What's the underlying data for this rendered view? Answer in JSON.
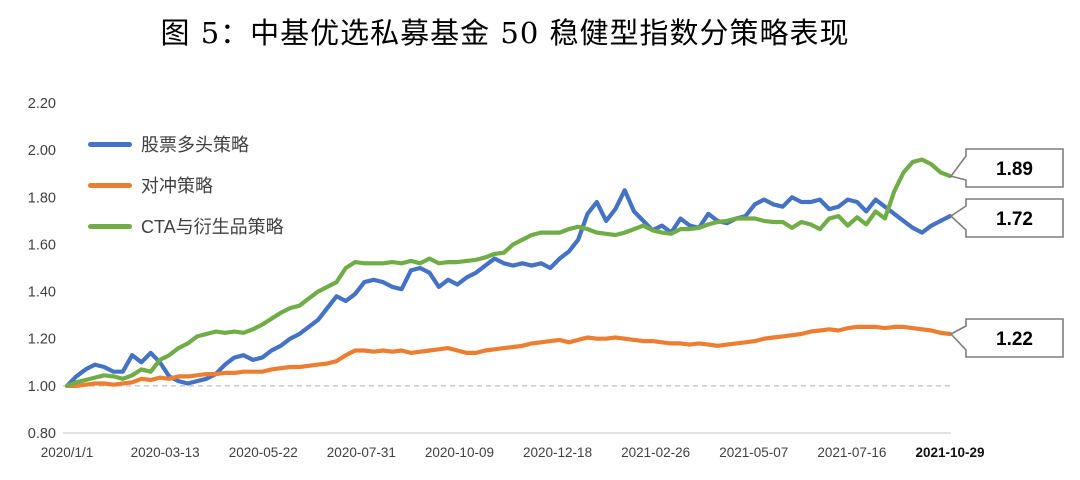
{
  "title": "图 5：中基优选私募基金 50 稳健型指数分策略表现",
  "chart_data": {
    "type": "line",
    "title": "图 5：中基优选私募基金 50 稳健型指数分策略表现",
    "ylim": [
      0.8,
      2.2
    ],
    "y_ticks": [
      "2.20",
      "2.00",
      "1.80",
      "1.60",
      "1.40",
      "1.20",
      "1.00",
      "0.80"
    ],
    "x_labels": [
      "2020/1/1",
      "2020-03-13",
      "2020-05-22",
      "2020-07-31",
      "2020-10-09",
      "2020-12-18",
      "2021-02-26",
      "2021-05-07",
      "2021-07-16",
      "2021-10-29"
    ],
    "baseline_dashed_at": 1.0,
    "grid": "only dashed line at 1.00 and solid bottom axis at 0.80",
    "legend_position": "inside-top-left",
    "series": [
      {
        "name": "股票多头策略",
        "color": "#4472C4",
        "end_label": "1.72",
        "values": [
          1.0,
          1.04,
          1.07,
          1.09,
          1.08,
          1.06,
          1.06,
          1.13,
          1.1,
          1.14,
          1.1,
          1.04,
          1.02,
          1.01,
          1.02,
          1.03,
          1.05,
          1.09,
          1.12,
          1.13,
          1.11,
          1.12,
          1.15,
          1.17,
          1.2,
          1.22,
          1.25,
          1.28,
          1.33,
          1.38,
          1.36,
          1.39,
          1.44,
          1.45,
          1.44,
          1.42,
          1.41,
          1.49,
          1.5,
          1.48,
          1.42,
          1.45,
          1.43,
          1.46,
          1.48,
          1.51,
          1.54,
          1.52,
          1.51,
          1.52,
          1.51,
          1.52,
          1.5,
          1.54,
          1.57,
          1.62,
          1.73,
          1.78,
          1.7,
          1.75,
          1.83,
          1.74,
          1.7,
          1.66,
          1.68,
          1.65,
          1.71,
          1.68,
          1.67,
          1.73,
          1.7,
          1.69,
          1.71,
          1.72,
          1.77,
          1.79,
          1.77,
          1.76,
          1.8,
          1.78,
          1.78,
          1.79,
          1.75,
          1.76,
          1.79,
          1.78,
          1.74,
          1.79,
          1.76,
          1.73,
          1.7,
          1.67,
          1.65,
          1.68,
          1.7,
          1.72
        ]
      },
      {
        "name": "对冲策略",
        "color": "#ED7D31",
        "end_label": "1.22",
        "values": [
          1.0,
          1.0,
          1.005,
          1.01,
          1.01,
          1.005,
          1.01,
          1.015,
          1.03,
          1.025,
          1.035,
          1.03,
          1.04,
          1.04,
          1.045,
          1.05,
          1.05,
          1.055,
          1.055,
          1.06,
          1.06,
          1.06,
          1.07,
          1.075,
          1.08,
          1.08,
          1.085,
          1.09,
          1.095,
          1.105,
          1.13,
          1.15,
          1.15,
          1.145,
          1.15,
          1.145,
          1.15,
          1.14,
          1.145,
          1.15,
          1.155,
          1.16,
          1.15,
          1.14,
          1.14,
          1.15,
          1.155,
          1.16,
          1.165,
          1.17,
          1.18,
          1.185,
          1.19,
          1.195,
          1.185,
          1.195,
          1.205,
          1.2,
          1.2,
          1.205,
          1.2,
          1.195,
          1.19,
          1.19,
          1.185,
          1.18,
          1.18,
          1.175,
          1.18,
          1.175,
          1.17,
          1.175,
          1.18,
          1.185,
          1.19,
          1.2,
          1.205,
          1.21,
          1.215,
          1.22,
          1.23,
          1.235,
          1.24,
          1.235,
          1.245,
          1.25,
          1.25,
          1.25,
          1.245,
          1.25,
          1.25,
          1.245,
          1.24,
          1.235,
          1.225,
          1.22
        ]
      },
      {
        "name": "CTA与衍生品策略",
        "color": "#70AD47",
        "end_label": "1.89",
        "values": [
          1.0,
          1.015,
          1.025,
          1.035,
          1.045,
          1.04,
          1.03,
          1.045,
          1.07,
          1.06,
          1.11,
          1.13,
          1.16,
          1.18,
          1.21,
          1.22,
          1.23,
          1.225,
          1.23,
          1.225,
          1.24,
          1.26,
          1.285,
          1.31,
          1.33,
          1.34,
          1.37,
          1.4,
          1.42,
          1.44,
          1.5,
          1.525,
          1.52,
          1.52,
          1.52,
          1.525,
          1.52,
          1.53,
          1.52,
          1.54,
          1.52,
          1.525,
          1.525,
          1.53,
          1.535,
          1.545,
          1.56,
          1.565,
          1.6,
          1.62,
          1.64,
          1.65,
          1.65,
          1.65,
          1.665,
          1.675,
          1.665,
          1.65,
          1.645,
          1.64,
          1.65,
          1.665,
          1.68,
          1.66,
          1.65,
          1.645,
          1.665,
          1.665,
          1.67,
          1.685,
          1.695,
          1.7,
          1.71,
          1.71,
          1.71,
          1.7,
          1.695,
          1.695,
          1.67,
          1.695,
          1.685,
          1.665,
          1.71,
          1.72,
          1.68,
          1.715,
          1.685,
          1.74,
          1.71,
          1.825,
          1.905,
          1.95,
          1.96,
          1.94,
          1.905,
          1.89
        ]
      }
    ],
    "callouts": [
      {
        "text": "1.89",
        "series": "CTA与衍生品策略"
      },
      {
        "text": "1.72",
        "series": "股票多头策略"
      },
      {
        "text": "1.22",
        "series": "对冲策略"
      }
    ]
  }
}
